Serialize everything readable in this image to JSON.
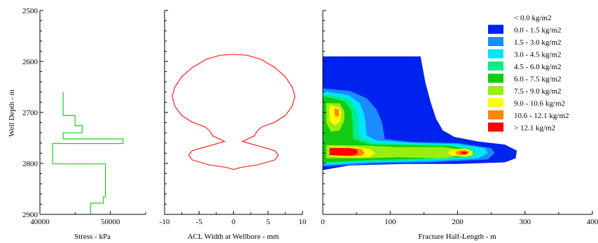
{
  "y_axis": {
    "label": "Well Depth - m",
    "range": [
      2500,
      2900
    ],
    "ticks": [
      2500,
      2600,
      2700,
      2800,
      2900
    ]
  },
  "chart_data": [
    {
      "type": "line",
      "xlabel": "Stress - kPa",
      "ylabel": "Well Depth - m",
      "xlim": [
        40000,
        55000
      ],
      "ylim": [
        2900,
        2500
      ],
      "x_ticks": [
        40000,
        50000
      ],
      "color": "#22cc22",
      "series": [
        {
          "x": [
            43300,
            43300,
            45000,
            45000,
            46000,
            46000,
            43300,
            43300,
            51800,
            51800,
            41800,
            41800,
            49300,
            49300,
            49000,
            49000,
            47200,
            47200
          ],
          "y": [
            2660,
            2706,
            2706,
            2726,
            2726,
            2740,
            2740,
            2752,
            2752,
            2761,
            2761,
            2801,
            2801,
            2866,
            2866,
            2878,
            2878,
            2900
          ]
        }
      ]
    },
    {
      "type": "line",
      "xlabel": "ACL Width at Wellbore - mm",
      "ylabel": "",
      "xlim": [
        -10,
        10
      ],
      "ylim": [
        2900,
        2500
      ],
      "x_ticks": [
        -10,
        -5,
        0,
        5,
        10
      ],
      "color": "#ff2222",
      "series": [
        {
          "x": [
            0,
            2,
            4,
            6,
            7.5,
            8.5,
            8.9,
            8.5,
            7.5,
            6,
            4.2,
            3.5,
            3,
            1.3,
            6,
            6.5,
            6,
            3.5,
            1,
            0,
            -1,
            -3.5,
            -6,
            -6.5,
            -6,
            -1.3,
            -3,
            -3.5,
            -4.2,
            -6,
            -7.5,
            -8.5,
            -8.9,
            -8.5,
            -7.5,
            -6,
            -4,
            -2,
            0
          ],
          "y": [
            2586,
            2588,
            2596,
            2612,
            2630,
            2650,
            2668,
            2688,
            2706,
            2719,
            2728,
            2735,
            2746,
            2757,
            2775,
            2784,
            2793,
            2803,
            2808,
            2812,
            2808,
            2803,
            2793,
            2784,
            2775,
            2757,
            2746,
            2735,
            2728,
            2719,
            2706,
            2688,
            2668,
            2650,
            2630,
            2612,
            2596,
            2588,
            2586
          ]
        }
      ]
    },
    {
      "type": "heatmap",
      "xlabel": "Fracture Half-Length - m",
      "ylabel": "",
      "xlim": [
        0,
        400
      ],
      "ylim": [
        2900,
        2500
      ],
      "x_ticks": [
        0,
        100,
        200,
        300,
        400
      ],
      "legend": {
        "position": "top-right",
        "entries": [
          {
            "label": "< 0.0 kg/m2",
            "color": "#ffffff"
          },
          {
            "label": "0.0 - 1.5 kg/m2",
            "color": "#0022ee"
          },
          {
            "label": "1.5 - 3.0 kg/m2",
            "color": "#1a8cff"
          },
          {
            "label": "3.0 - 4.5 kg/m2",
            "color": "#00e5ff"
          },
          {
            "label": "4.5 - 6.0 kg/m2",
            "color": "#00ee88"
          },
          {
            "label": "6.0 - 7.5 kg/m2",
            "color": "#11cc11"
          },
          {
            "label": "7.5 - 9.0 kg/m2",
            "color": "#99ee11"
          },
          {
            "label": "9.0 - 10.6 kg/m2",
            "color": "#ffff00"
          },
          {
            "label": "10.6 - 12.1 kg/m2",
            "color": "#ff8800"
          },
          {
            "label": "> 12.1 kg/m2",
            "color": "#ff0000"
          }
        ]
      },
      "regions": [
        {
          "level": 1,
          "x": [
            0,
            145,
            152,
            160,
            168,
            178,
            195,
            230,
            270,
            288,
            286,
            270,
            200,
            120,
            40,
            0
          ],
          "y": [
            2590,
            2590,
            2640,
            2680,
            2712,
            2735,
            2748,
            2757,
            2763,
            2775,
            2790,
            2798,
            2801,
            2801,
            2804,
            2813
          ]
        },
        {
          "level": 2,
          "x": [
            0,
            40,
            65,
            80,
            88,
            92,
            130,
            200,
            250,
            255,
            245,
            160,
            80,
            0
          ],
          "y": [
            2653,
            2658,
            2672,
            2695,
            2720,
            2752,
            2758,
            2760,
            2770,
            2780,
            2792,
            2798,
            2800,
            2806
          ]
        },
        {
          "level": 3,
          "x": [
            0,
            38,
            55,
            62,
            65,
            80,
            140,
            200,
            240,
            245,
            230,
            160,
            70,
            0
          ],
          "y": [
            2658,
            2666,
            2682,
            2705,
            2745,
            2755,
            2760,
            2762,
            2770,
            2780,
            2790,
            2795,
            2798,
            2803
          ]
        },
        {
          "level": 4,
          "x": [
            0,
            35,
            48,
            52,
            54,
            75,
            130,
            195,
            225,
            228,
            218,
            150,
            65,
            0
          ],
          "y": [
            2664,
            2672,
            2690,
            2712,
            2748,
            2760,
            2762,
            2764,
            2772,
            2780,
            2788,
            2793,
            2796,
            2800
          ]
        },
        {
          "level": 5,
          "x": [
            0,
            32,
            42,
            44,
            45,
            70,
            120,
            190,
            215,
            217,
            205,
            140,
            60,
            0
          ],
          "y": [
            2668,
            2678,
            2695,
            2718,
            2752,
            2763,
            2764,
            2766,
            2773,
            2780,
            2787,
            2791,
            2794,
            2798
          ]
        },
        {
          "level": 6,
          "x": [
            5,
            25,
            32,
            32,
            25,
            12,
            5,
            5,
            60,
            110,
            180,
            205,
            205,
            180,
            110,
            60,
            5
          ],
          "y": [
            2682,
            2682,
            2698,
            2716,
            2735,
            2738,
            2720,
            2764,
            2765,
            2768,
            2768,
            2773,
            2784,
            2790,
            2788,
            2790,
            2790
          ]
        },
        {
          "level": 7,
          "x": [
            10,
            24,
            28,
            26,
            18,
            10,
            10,
            50,
            70,
            78,
            70,
            50,
            10
          ],
          "y": [
            2686,
            2690,
            2700,
            2718,
            2726,
            2716,
            2766,
            2768,
            2772,
            2780,
            2787,
            2788,
            2786
          ]
        },
        {
          "level": 7,
          "x": [
            190,
            210,
            222,
            222,
            210,
            190,
            186
          ],
          "y": [
            2773,
            2771,
            2775,
            2784,
            2787,
            2784,
            2779
          ]
        },
        {
          "level": 8,
          "x": [
            10,
            40,
            58,
            62,
            58,
            40,
            10
          ],
          "y": [
            2769,
            2769,
            2772,
            2779,
            2785,
            2786,
            2784
          ]
        },
        {
          "level": 8,
          "x": [
            200,
            212,
            218,
            212,
            200,
            197
          ],
          "y": [
            2775,
            2774,
            2778,
            2784,
            2784,
            2779
          ]
        },
        {
          "level": 9,
          "x": [
            10,
            38,
            50,
            52,
            48,
            36,
            10
          ],
          "y": [
            2770,
            2770,
            2772,
            2779,
            2784,
            2785,
            2784
          ]
        },
        {
          "level": 9,
          "x": [
            205,
            213,
            215,
            211,
            205
          ],
          "y": [
            2777,
            2777,
            2780,
            2782,
            2781
          ]
        },
        {
          "level": 8,
          "x": [
            17,
            24,
            24,
            18
          ],
          "y": [
            2692,
            2694,
            2708,
            2708
          ]
        }
      ]
    }
  ]
}
